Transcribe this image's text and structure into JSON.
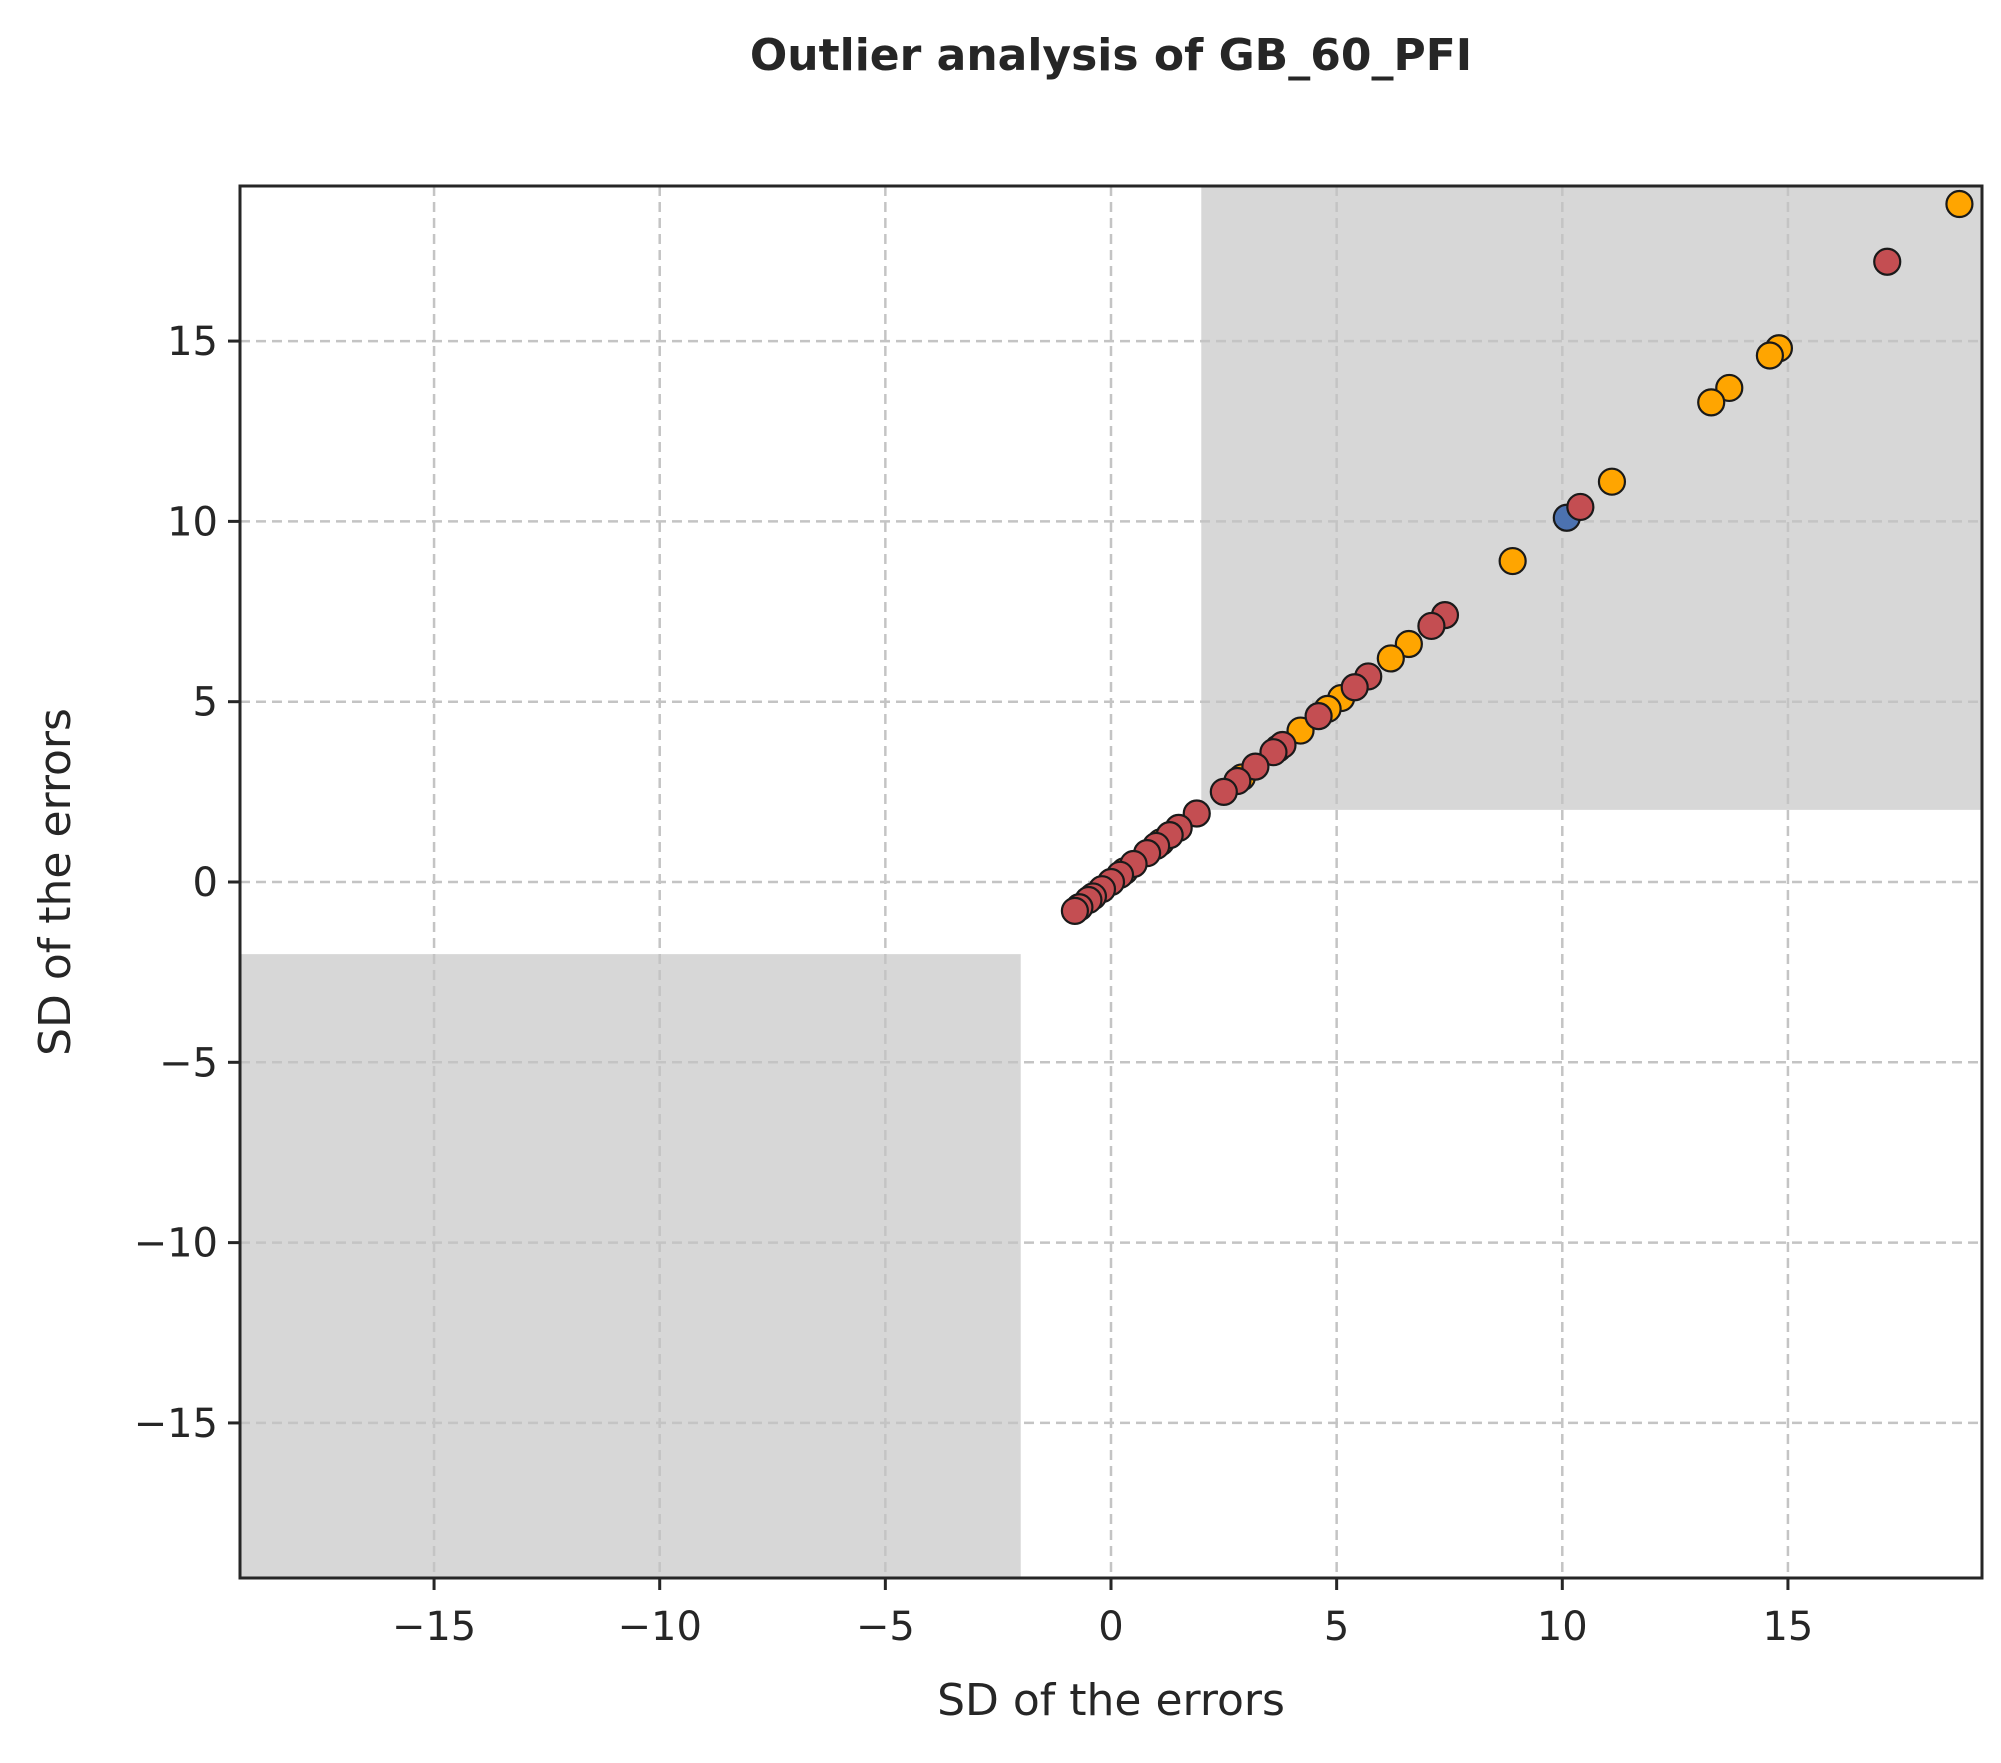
{
  "chart_data": {
    "type": "scatter",
    "title": "Outlier analysis of GB_60_PFI",
    "xlabel": "SD of the errors",
    "ylabel": "SD of the errors",
    "xlim": [
      -19.3,
      19.3
    ],
    "ylim": [
      -19.3,
      19.3
    ],
    "x_ticks": [
      -15,
      -10,
      -5,
      0,
      5,
      10,
      15
    ],
    "y_ticks": [
      -15,
      -10,
      -5,
      0,
      5,
      10,
      15
    ],
    "x_tick_labels": [
      "−15",
      "−10",
      "−5",
      "0",
      "5",
      "10",
      "15"
    ],
    "y_tick_labels": [
      "−15",
      "−10",
      "−5",
      "0",
      "5",
      "10",
      "15"
    ],
    "grid": true,
    "shaded_regions": [
      {
        "x": [
          2,
          19.3
        ],
        "y": [
          2,
          19.3
        ]
      },
      {
        "x": [
          -19.3,
          -2
        ],
        "y": [
          -19.3,
          -2
        ]
      }
    ],
    "colors": {
      "shade": "#d7d7d7",
      "grid": "#c4c4c4",
      "axes": "#262626",
      "marker_edge": "#1a1a1a"
    },
    "series": [
      {
        "color": "#ffa500",
        "points": [
          [
            18.8,
            18.8
          ],
          [
            14.8,
            14.8
          ],
          [
            14.6,
            14.6
          ],
          [
            13.7,
            13.7
          ],
          [
            13.3,
            13.3
          ],
          [
            11.1,
            11.1
          ],
          [
            8.9,
            8.9
          ],
          [
            6.6,
            6.6
          ],
          [
            6.2,
            6.2
          ],
          [
            5.1,
            5.1
          ],
          [
            4.8,
            4.8
          ],
          [
            4.2,
            4.2
          ],
          [
            3.7,
            3.7
          ],
          [
            2.9,
            2.9
          ],
          [
            0.3,
            0.3
          ],
          [
            -0.7,
            -0.7
          ],
          [
            1.1,
            1.1
          ]
        ]
      },
      {
        "color": "#4c72b0",
        "points": [
          [
            10.1,
            10.1
          ]
        ]
      },
      {
        "color": "#c44e52",
        "points": [
          [
            17.2,
            17.2
          ],
          [
            10.4,
            10.4
          ],
          [
            7.4,
            7.4
          ],
          [
            7.1,
            7.1
          ],
          [
            5.7,
            5.7
          ],
          [
            5.4,
            5.4
          ],
          [
            4.6,
            4.6
          ],
          [
            3.8,
            3.8
          ],
          [
            3.6,
            3.6
          ],
          [
            3.2,
            3.2
          ],
          [
            2.8,
            2.8
          ],
          [
            2.5,
            2.5
          ],
          [
            1.9,
            1.9
          ],
          [
            1.5,
            1.5
          ],
          [
            1.3,
            1.3
          ],
          [
            1.0,
            1.0
          ],
          [
            0.8,
            0.8
          ],
          [
            0.5,
            0.5
          ],
          [
            0.2,
            0.2
          ],
          [
            0.0,
            0.0
          ],
          [
            -0.2,
            -0.2
          ],
          [
            -0.4,
            -0.4
          ],
          [
            -0.5,
            -0.5
          ],
          [
            -0.7,
            -0.7
          ],
          [
            -0.8,
            -0.8
          ]
        ]
      }
    ]
  }
}
